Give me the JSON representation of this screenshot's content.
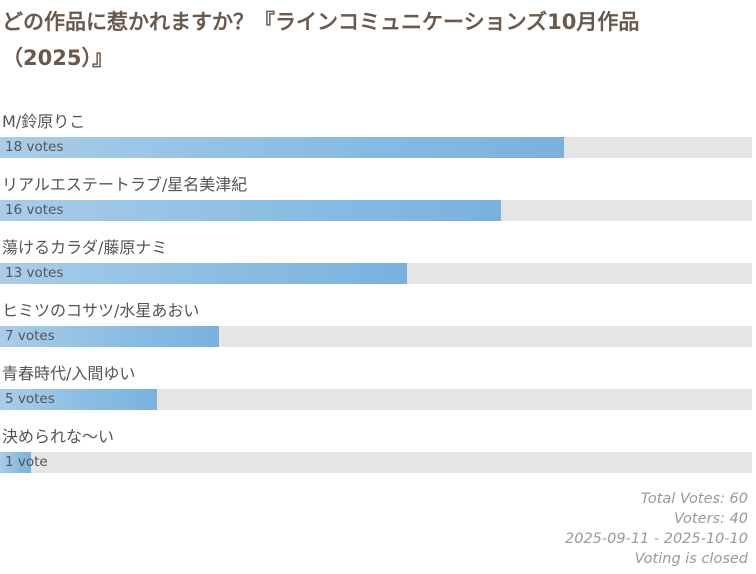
{
  "poll": {
    "title": "どの作品に惹かれますか？『ラインコミュニケーションズ10月作品（2025）』",
    "answers": [
      {
        "label": "M/鈴原りこ",
        "votes": 18,
        "votes_text": "18 votes"
      },
      {
        "label": "リアルエステートラブ/星名美津紀",
        "votes": 16,
        "votes_text": "16 votes"
      },
      {
        "label": "蕩けるカラダ/藤原ナミ",
        "votes": 13,
        "votes_text": "13 votes"
      },
      {
        "label": "ヒミツのコサツ/水星あおい",
        "votes": 7,
        "votes_text": "7 votes"
      },
      {
        "label": "青春時代/入間ゆい",
        "votes": 5,
        "votes_text": "5 votes"
      },
      {
        "label": "決められな～い",
        "votes": 1,
        "votes_text": "1 vote"
      }
    ],
    "footer": {
      "total_votes": "Total Votes: 60",
      "voters": "Voters: 40",
      "date_range": "2025-09-11 - 2025-10-10",
      "status": "Voting is closed"
    },
    "colors": {
      "bar_fill": "#7ab2de",
      "bar_track": "#e5e5e5",
      "title": "#6b5a4c"
    }
  }
}
